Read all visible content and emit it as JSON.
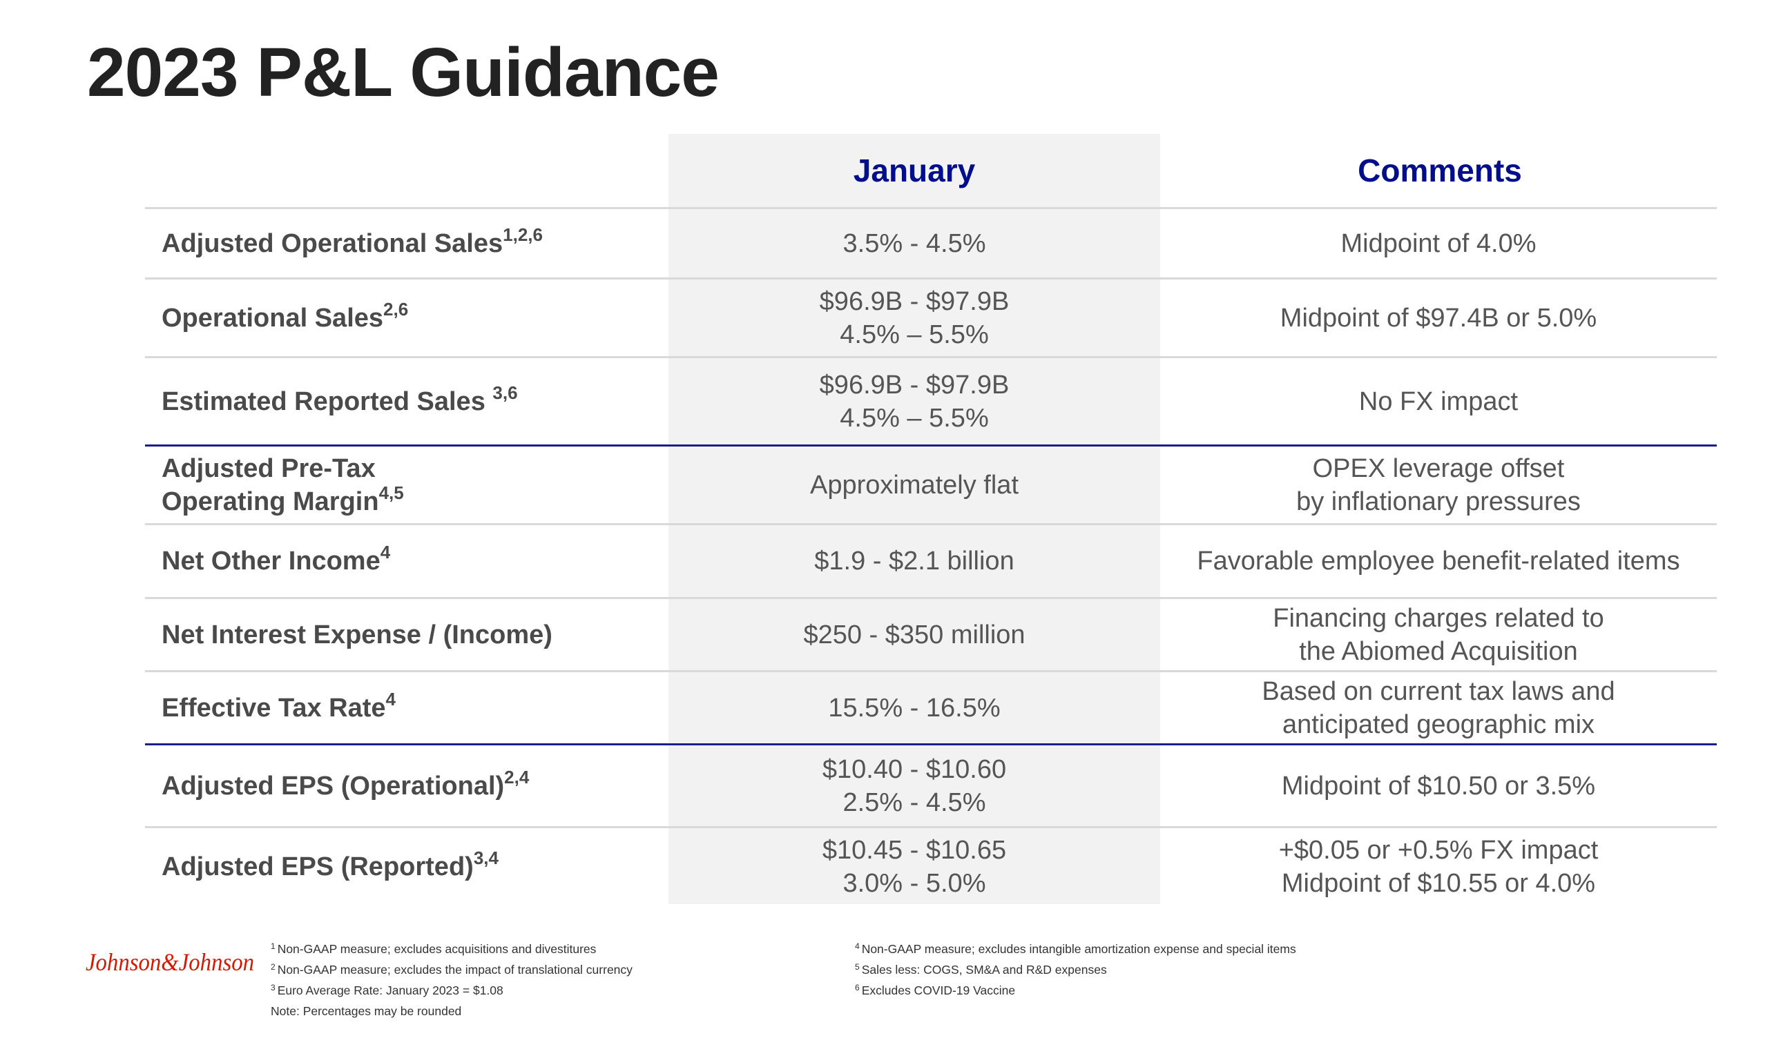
{
  "title": "2023 P&L Guidance",
  "headers": {
    "january": "January",
    "comments": "Comments"
  },
  "rows": [
    {
      "label": "Adjusted Operational Sales",
      "sup": "1,2,6",
      "january": [
        "3.5% - 4.5%"
      ],
      "comments": [
        "Midpoint of 4.0%"
      ]
    },
    {
      "label": "Operational Sales",
      "sup": "2,6",
      "january": [
        "$96.9B - $97.9B",
        "4.5% – 5.5%"
      ],
      "comments": [
        "Midpoint of $97.4B or 5.0%"
      ]
    },
    {
      "label": "Estimated Reported Sales ",
      "sup": "3,6",
      "january": [
        "$96.9B - $97.9B",
        "4.5% – 5.5%"
      ],
      "comments": [
        "No FX impact"
      ]
    },
    {
      "label_lines": [
        "Adjusted Pre-Tax",
        "Operating Margin"
      ],
      "sup": "4,5",
      "january": [
        "Approximately flat"
      ],
      "comments": [
        "OPEX leverage offset",
        "by inflationary pressures"
      ]
    },
    {
      "label": "Net Other Income",
      "sup": "4",
      "january": [
        "$1.9 - $2.1 billion"
      ],
      "comments": [
        "Favorable employee benefit-related items"
      ]
    },
    {
      "label": "Net Interest Expense / (Income)",
      "sup": "",
      "january": [
        "$250 - $350 million"
      ],
      "comments": [
        "Financing charges related to",
        "the Abiomed Acquisition"
      ]
    },
    {
      "label": "Effective Tax Rate",
      "sup": "4",
      "january": [
        "15.5% - 16.5%"
      ],
      "comments": [
        "Based on current tax laws and",
        "anticipated geographic mix"
      ]
    },
    {
      "label": "Adjusted EPS (Operational)",
      "sup": "2,4",
      "january": [
        "$10.40 - $10.60",
        "2.5% - 4.5%"
      ],
      "comments": [
        "Midpoint of $10.50 or 3.5%"
      ]
    },
    {
      "label": "Adjusted EPS (Reported)",
      "sup": "3,4",
      "january": [
        "$10.45 - $10.65",
        "3.0% - 5.0%"
      ],
      "comments": [
        "+$0.05 or +0.5% FX impact",
        "Midpoint of $10.55 or 4.0%"
      ]
    }
  ],
  "footnotes_left": [
    {
      "num": "1",
      "text": "Non-GAAP measure; excludes acquisitions and divestitures"
    },
    {
      "num": "2",
      "text": "Non-GAAP measure; excludes the impact of translational currency"
    },
    {
      "num": "3",
      "text": "Euro Average Rate: January 2023 = $1.08"
    },
    {
      "num": "",
      "text": "Note: Percentages may be rounded"
    }
  ],
  "footnotes_right": [
    {
      "num": "4",
      "text": "Non-GAAP measure; excludes intangible amortization expense and special items"
    },
    {
      "num": "5",
      "text": "Sales less: COGS, SM&A and R&D expenses"
    },
    {
      "num": "6",
      "text": "Excludes COVID-19 Vaccine"
    }
  ],
  "logo": {
    "text": "Johnson&Johnson",
    "color": "#d51900"
  },
  "colors": {
    "header_blue": "#000e8c",
    "divider_blue": "#1a1e86",
    "divider_gray": "#d9d9d9",
    "january_bg": "#f2f2f2"
  }
}
